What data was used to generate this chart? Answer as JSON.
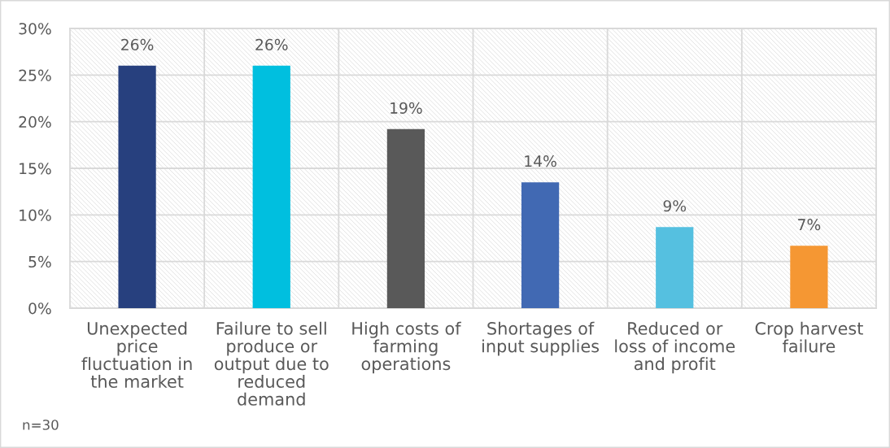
{
  "chart_data": {
    "type": "bar",
    "categories": [
      "Unexpected price fluctuation in the market",
      "Failure to sell produce or output due to reduced demand",
      "High costs of farming operations",
      "Shortages of input supplies",
      "Reduced or loss of income and profit",
      "Crop harvest failure"
    ],
    "values": [
      26.0,
      26.0,
      19.2,
      13.5,
      8.7,
      6.7
    ],
    "colors": [
      "#27407e",
      "#00bfdf",
      "#595959",
      "#4169b3",
      "#55c0e0",
      "#f59733"
    ],
    "value_labels": [
      "26%",
      "26%",
      "19%",
      "14%",
      "9%",
      "7%"
    ],
    "ylim": [
      0,
      30
    ],
    "yticks": [
      {
        "value": 0,
        "label": "0%"
      },
      {
        "value": 5,
        "label": "5%"
      },
      {
        "value": 10,
        "label": "10%"
      },
      {
        "value": 15,
        "label": "15%"
      },
      {
        "value": 20,
        "label": "20%"
      },
      {
        "value": 25,
        "label": "25%"
      },
      {
        "value": 30,
        "label": "30%"
      }
    ],
    "grid": true,
    "annotations": [
      "n=30"
    ]
  }
}
